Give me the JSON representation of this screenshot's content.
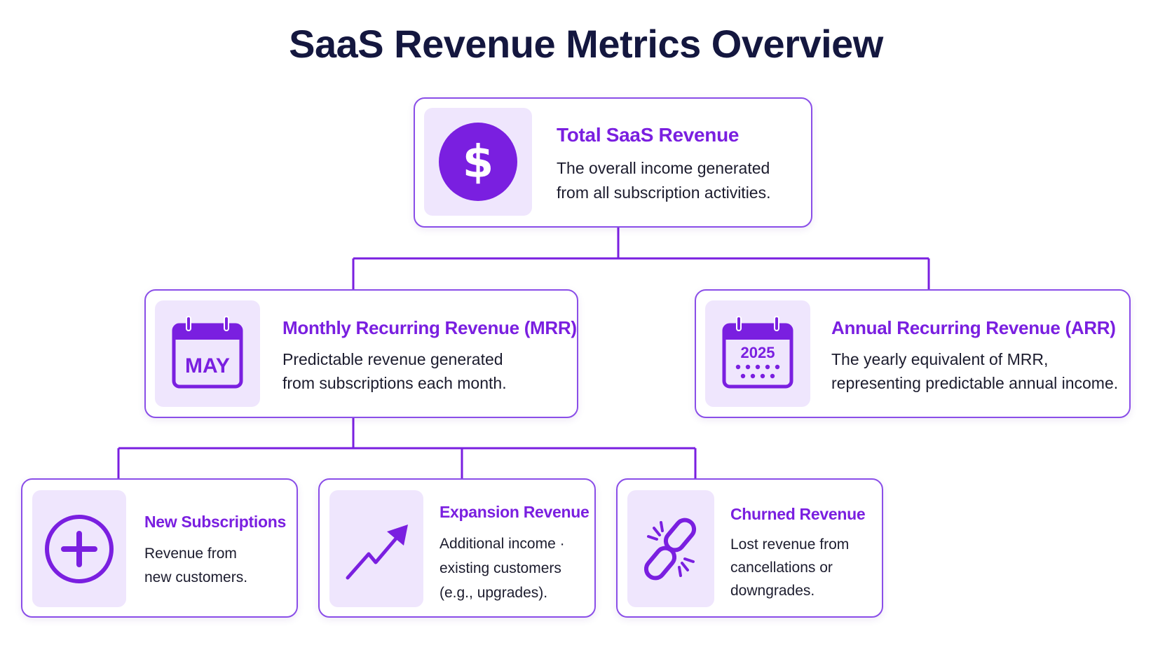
{
  "title": "SaaS Revenue Metrics Overview",
  "colors": {
    "accent": "#7a1fe0",
    "border": "#8a4ee8",
    "icon_bg": "#efe6fd",
    "title": "#14173f"
  },
  "nodes": {
    "total": {
      "title": "Total SaaS Revenue",
      "description": "The overall income generated\nfrom all subscription activities.",
      "icon": "dollar-icon",
      "icon_text": "$"
    },
    "mrr": {
      "title": "Monthly Recurring Revenue (MRR)",
      "description": "Predictable revenue generated\nfrom subscriptions each month.",
      "icon": "calendar-month-icon",
      "icon_text": "MAY"
    },
    "arr": {
      "title": "Annual Recurring Revenue (ARR)",
      "description": "The yearly equivalent of MRR,\nrepresenting predictable annual income.",
      "icon": "calendar-year-icon",
      "icon_text": "2025"
    },
    "new_subs": {
      "title": "New Subscriptions",
      "description": "Revenue from\nnew customers.",
      "icon": "plus-circle-icon"
    },
    "expansion": {
      "title": "Expansion Revenue",
      "description": "Additional income ·\nexisting customers\n(e.g., upgrades).",
      "icon": "trend-up-arrow-icon"
    },
    "churned": {
      "title": "Churned Revenue",
      "description": "Lost revenue from\ncancellations or\ndowngrades.",
      "icon": "broken-link-icon"
    }
  }
}
